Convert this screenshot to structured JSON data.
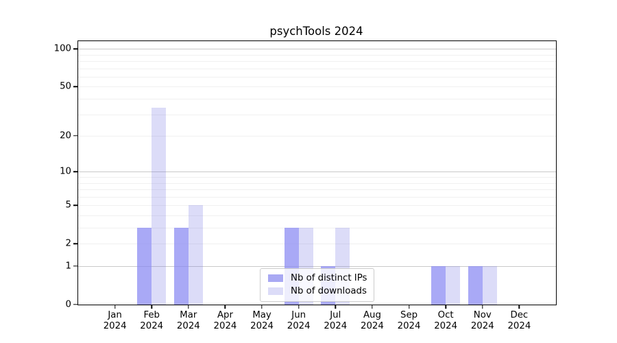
{
  "chart_data": {
    "type": "bar",
    "title": "psychTools 2024",
    "categories": [
      "Jan",
      "Feb",
      "Mar",
      "Apr",
      "May",
      "Jun",
      "Jul",
      "Aug",
      "Sep",
      "Oct",
      "Nov",
      "Dec"
    ],
    "year": "2024",
    "series": [
      {
        "name": "Nb of distinct IPs",
        "color": "#a9a9f3",
        "fill": "rgba(133,133,242,0.70)",
        "values": [
          0,
          3,
          3,
          0,
          0,
          3,
          1,
          0,
          0,
          1,
          1,
          0
        ]
      },
      {
        "name": "Nb of downloads",
        "color": "#dcdcf8",
        "fill": "rgba(110,110,227,0.24)",
        "values": [
          0,
          34,
          5,
          0,
          0,
          3,
          3,
          0,
          0,
          1,
          1,
          0
        ]
      }
    ],
    "xlabel": "",
    "ylabel": "",
    "y_axis": {
      "scale": "log10(value+1)",
      "tick_values": [
        0,
        1,
        2,
        5,
        10,
        20,
        50,
        100
      ],
      "tick_labels": [
        "0",
        "1",
        "2",
        "5",
        "10",
        "20",
        "50",
        "100"
      ],
      "max_value": 115
    },
    "grid": {
      "on": true,
      "minor_values": [
        2,
        3,
        4,
        5,
        6,
        7,
        8,
        9,
        20,
        30,
        40,
        50,
        60,
        70,
        80,
        90
      ],
      "major_values": [
        1,
        10,
        100
      ]
    },
    "legend": {
      "position": "lower-center",
      "entries": [
        "Nb of distinct IPs",
        "Nb of downloads"
      ]
    },
    "colors": {
      "bar_distinct_ips": "#a9a9f3",
      "bar_downloads": "#dcdcf8",
      "grid_major": "#c9c9c9",
      "grid_minor": "#f0f0f0",
      "axis": "#000000",
      "background": "#ffffff"
    }
  }
}
